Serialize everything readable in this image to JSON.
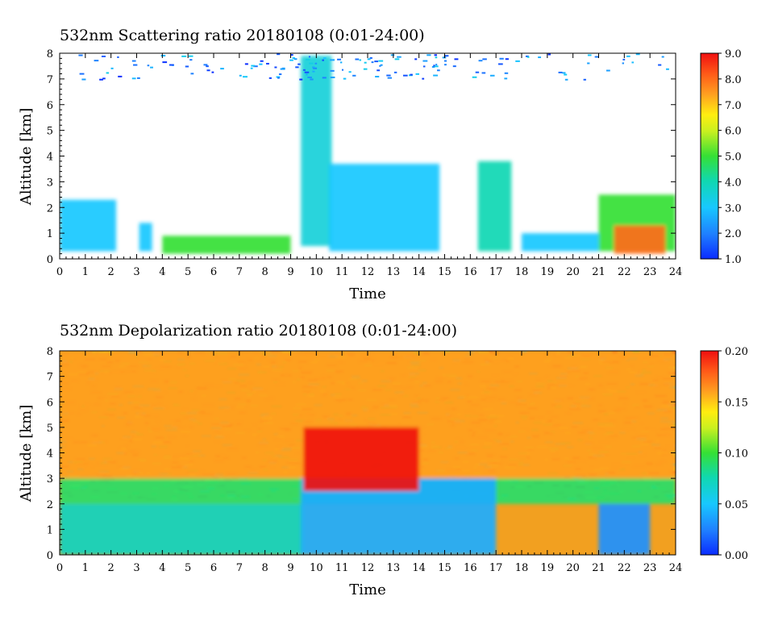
{
  "chart_data": [
    {
      "type": "heatmap",
      "title": "532nm Scattering ratio  20180108 (0:01-24:00)",
      "xlabel": "Time",
      "ylabel": "Altitude [km]",
      "xlim": [
        0,
        24
      ],
      "ylim": [
        0,
        8
      ],
      "x_ticks": [
        "0",
        "1",
        "2",
        "3",
        "4",
        "5",
        "6",
        "7",
        "8",
        "9",
        "10",
        "11",
        "12",
        "13",
        "14",
        "15",
        "16",
        "17",
        "18",
        "19",
        "20",
        "21",
        "22",
        "23",
        "24"
      ],
      "y_ticks": [
        "0",
        "1",
        "2",
        "3",
        "4",
        "5",
        "6",
        "7",
        "8"
      ],
      "colorbar": {
        "range": [
          1.0,
          9.0
        ],
        "ticks": [
          "1.0",
          "2.0",
          "3.0",
          "4.0",
          "5.0",
          "6.0",
          "7.0",
          "8.0",
          "9.0"
        ]
      },
      "background": "#ffffff",
      "features": [
        {
          "time": [
            0,
            2.2
          ],
          "alt": [
            0.3,
            2.3
          ],
          "value": 3.0
        },
        {
          "time": [
            3.1,
            3.6
          ],
          "alt": [
            0.3,
            1.4
          ],
          "value": 3.0
        },
        {
          "time": [
            4,
            9
          ],
          "alt": [
            0.2,
            0.9
          ],
          "value": 5.0
        },
        {
          "time": [
            9.4,
            10.6
          ],
          "alt": [
            0.5,
            7.9
          ],
          "value": 3.5
        },
        {
          "time": [
            10.5,
            14.8
          ],
          "alt": [
            0.3,
            3.7
          ],
          "value": 3.0
        },
        {
          "time": [
            16.3,
            17.6
          ],
          "alt": [
            0.3,
            3.8
          ],
          "value": 4.0
        },
        {
          "time": [
            18,
            21
          ],
          "alt": [
            0.3,
            1.0
          ],
          "value": 3.0
        },
        {
          "time": [
            21,
            24
          ],
          "alt": [
            0.3,
            2.5
          ],
          "value": 5.0
        },
        {
          "time": [
            21.6,
            23.6
          ],
          "alt": [
            0.2,
            1.3
          ],
          "value": 8.0
        }
      ]
    },
    {
      "type": "heatmap",
      "title": "532nm Depolarization ratio  20180108 (0:01-24:00)",
      "xlabel": "Time",
      "ylabel": "Altitude [km]",
      "xlim": [
        0,
        24
      ],
      "ylim": [
        0,
        8
      ],
      "x_ticks": [
        "0",
        "1",
        "2",
        "3",
        "4",
        "5",
        "6",
        "7",
        "8",
        "9",
        "10",
        "11",
        "12",
        "13",
        "14",
        "15",
        "16",
        "17",
        "18",
        "19",
        "20",
        "21",
        "22",
        "23",
        "24"
      ],
      "y_ticks": [
        "0",
        "1",
        "2",
        "3",
        "4",
        "5",
        "6",
        "7",
        "8"
      ],
      "colorbar": {
        "range": [
          0.0,
          0.2
        ],
        "ticks": [
          "0.00",
          "0.05",
          "0.10",
          "0.15",
          "0.20"
        ]
      },
      "features": [
        {
          "time": [
            0,
            24
          ],
          "alt": [
            3,
            8
          ],
          "value": 0.16
        },
        {
          "time": [
            0,
            24
          ],
          "alt": [
            2,
            3
          ],
          "value": 0.09
        },
        {
          "time": [
            0,
            9.5
          ],
          "alt": [
            0,
            2
          ],
          "value": 0.07
        },
        {
          "time": [
            9.4,
            17
          ],
          "alt": [
            0,
            3
          ],
          "value": 0.04
        },
        {
          "time": [
            21,
            23
          ],
          "alt": [
            0,
            2
          ],
          "value": 0.03
        },
        {
          "time": [
            9.5,
            14
          ],
          "alt": [
            2.5,
            5
          ],
          "value": 0.2
        }
      ]
    }
  ]
}
